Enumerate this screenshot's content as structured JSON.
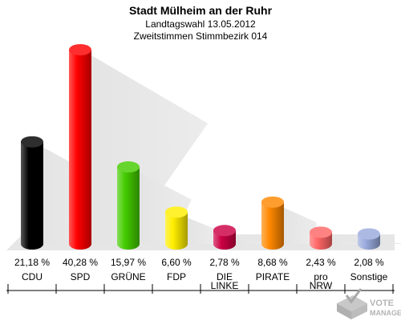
{
  "chart_data": {
    "type": "bar",
    "title": "Stadt Mülheim an der Ruhr",
    "subtitle_1": "Landtagswahl 13.05.2012",
    "subtitle_2": "Zweitstimmen Stimmbezirk 014",
    "categories": [
      [
        "CDU"
      ],
      [
        "SPD"
      ],
      [
        "GRÜNE"
      ],
      [
        "FDP"
      ],
      [
        "DIE",
        "LINKE"
      ],
      [
        "PIRATE"
      ],
      [
        "pro",
        "NRW"
      ],
      [
        "Sonstige"
      ]
    ],
    "values": [
      21.18,
      40.28,
      15.97,
      6.6,
      2.78,
      8.68,
      2.43,
      2.08
    ],
    "value_labels": [
      "21,18 %",
      "40,28 %",
      "15,97 %",
      "6,60 %",
      "2,78 %",
      "8,68 %",
      "2,43 %",
      "2,08 %"
    ],
    "colors": [
      "#000000",
      "#ff0000",
      "#44cc00",
      "#ffee00",
      "#cc0044",
      "#ff8800",
      "#ff6666",
      "#99aadd"
    ],
    "ylim": [
      0,
      40.28
    ]
  },
  "watermark": {
    "line1": "VOTE",
    "line2": "MANAGER"
  }
}
